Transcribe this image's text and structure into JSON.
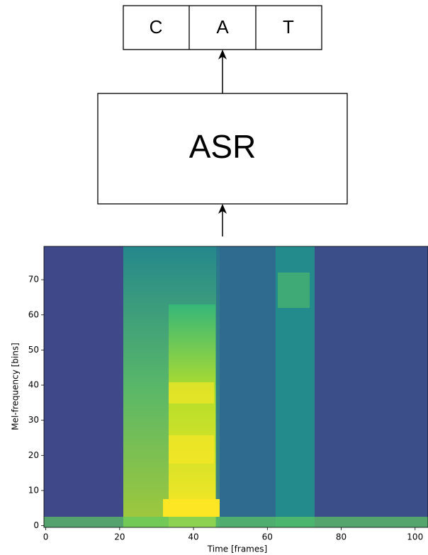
{
  "diagram": {
    "output_tokens": [
      "C",
      "A",
      "T"
    ],
    "model": "ASR"
  },
  "chart_data": {
    "type": "heatmap",
    "x_label": "Time [frames]",
    "y_label": "Mel-frequency [bins]",
    "xlim": [
      -0.5,
      103.5
    ],
    "ylim": [
      -0.5,
      79.5
    ],
    "xticks": [
      0,
      20,
      40,
      60,
      80,
      100
    ],
    "yticks": [
      0,
      10,
      20,
      30,
      40,
      50,
      60,
      70
    ]
  }
}
